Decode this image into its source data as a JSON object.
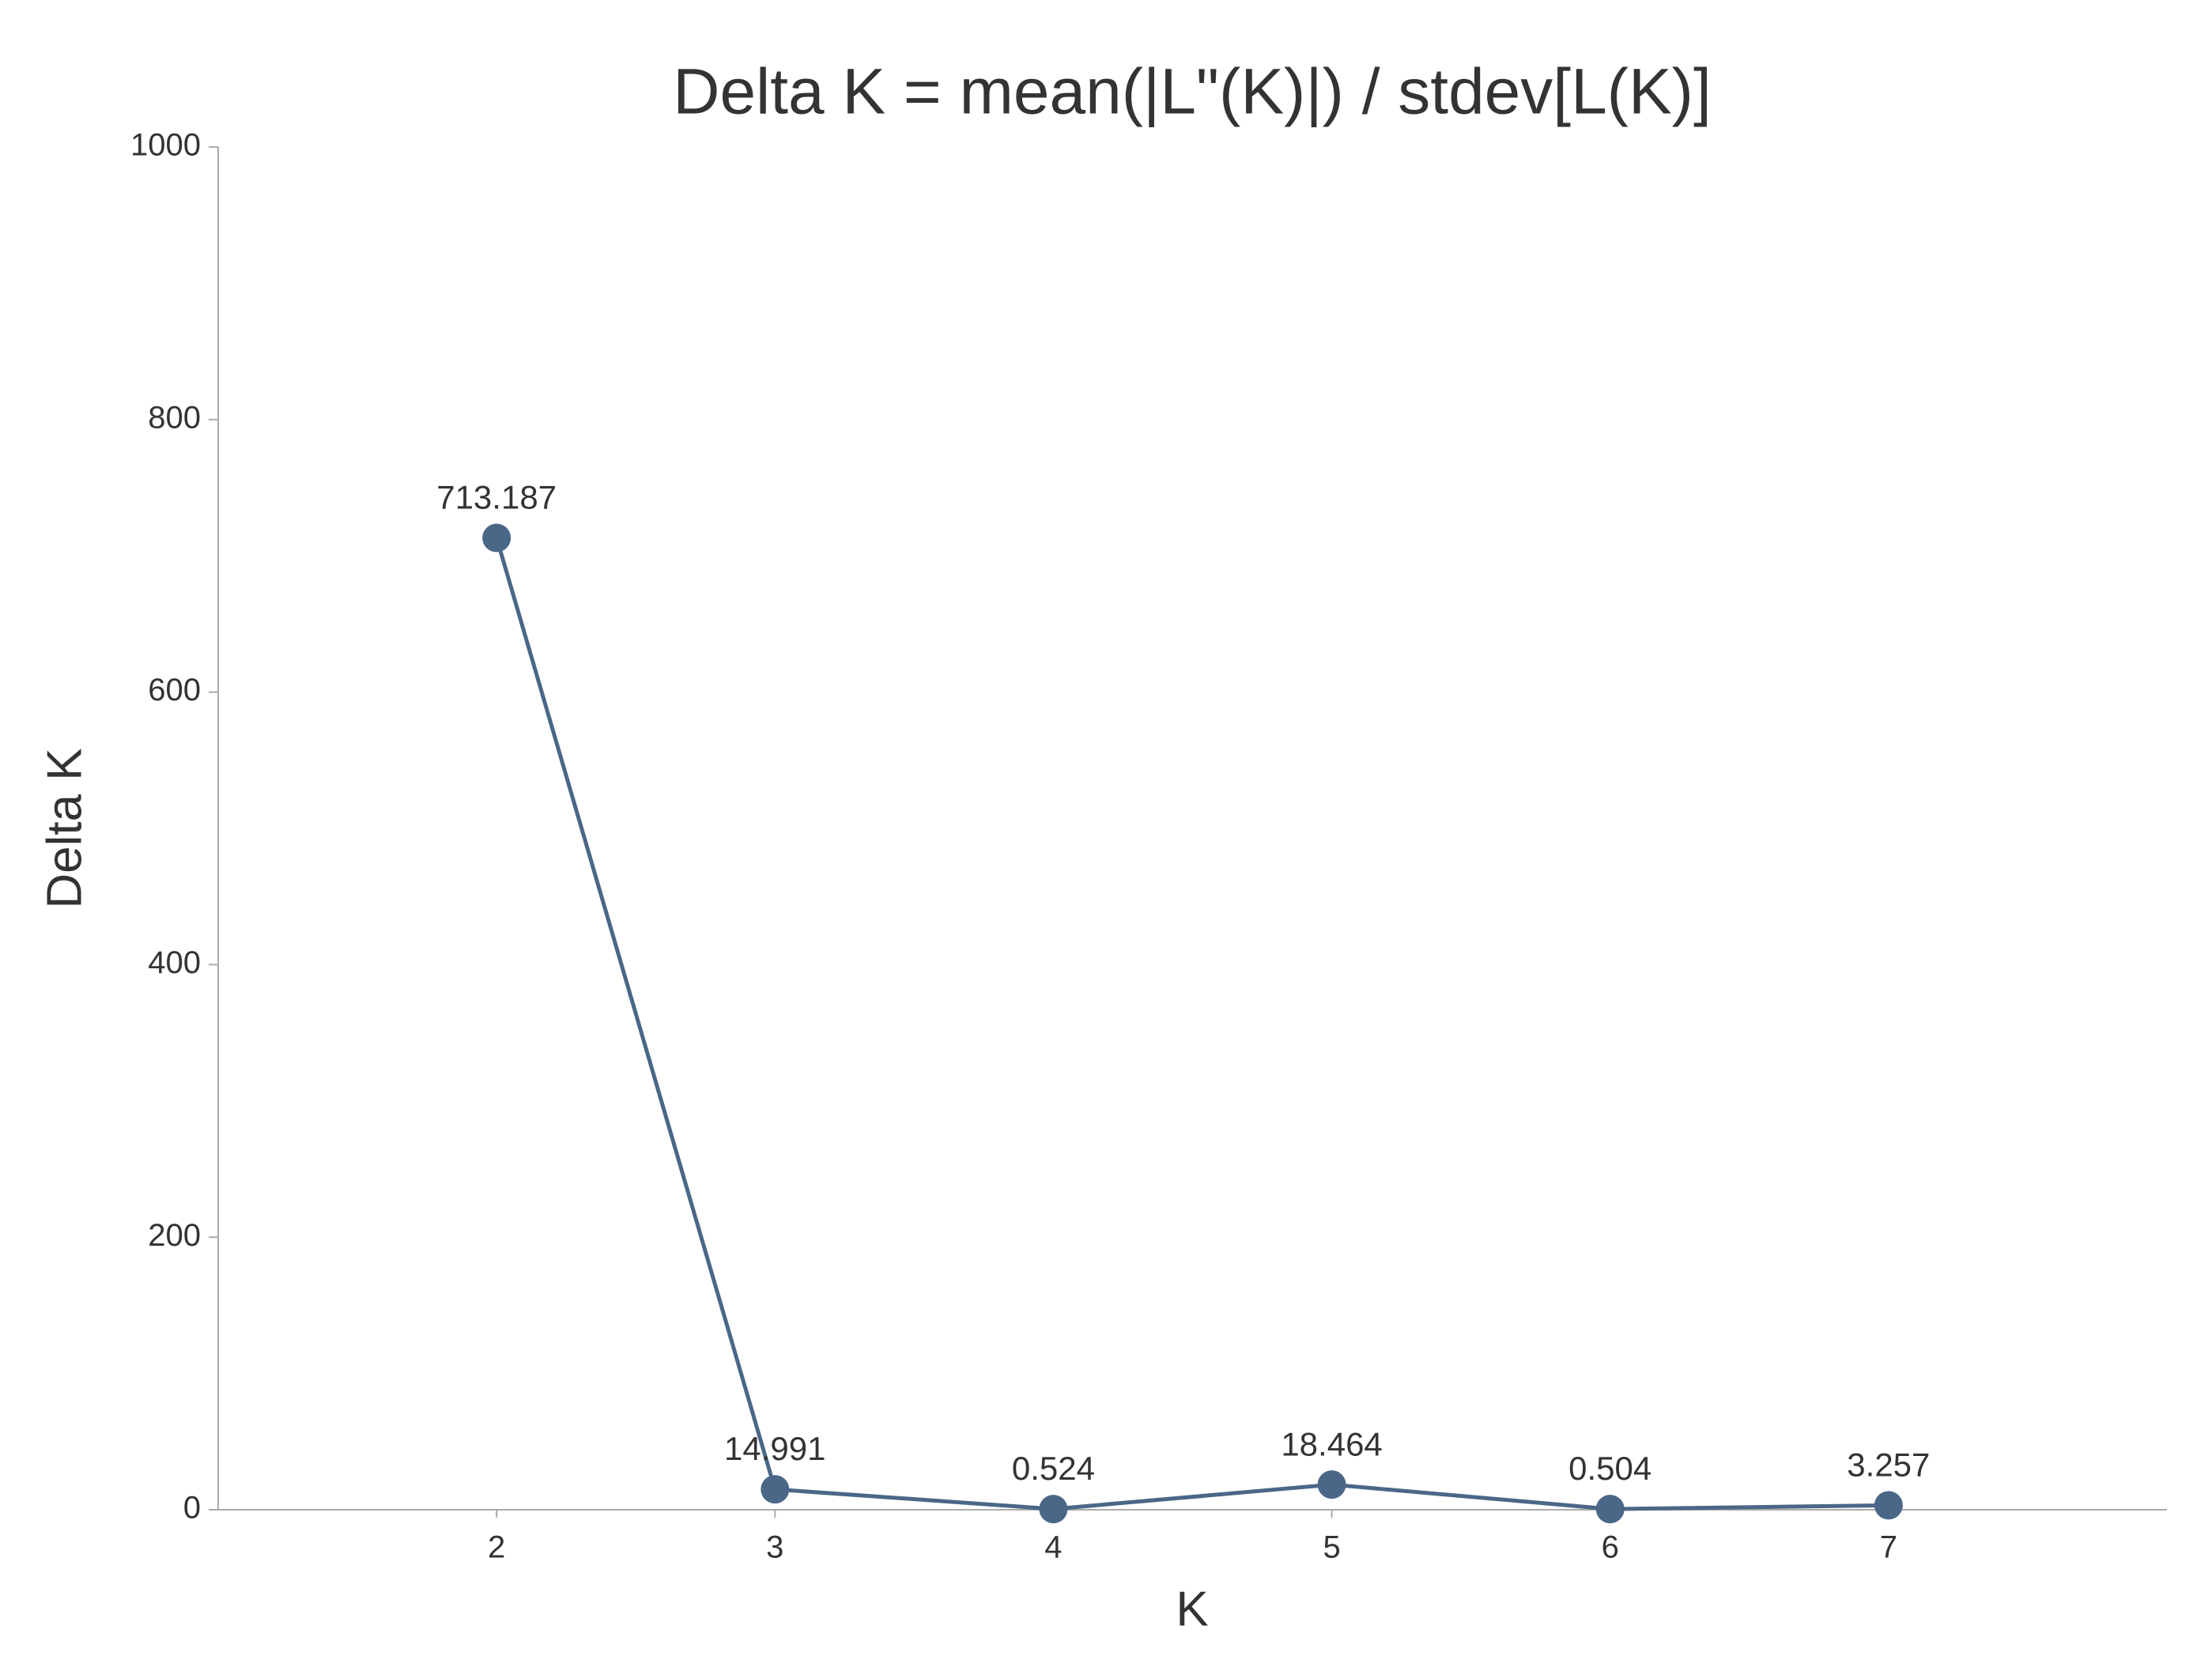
{
  "chart_data": {
    "type": "line",
    "title": "Delta K = mean(|L\"(K)|) / stdev[L(K)]",
    "x_label": "K",
    "y_label": "Delta K",
    "x": [
      2,
      3,
      4,
      5,
      6,
      7
    ],
    "series": [
      {
        "color": "#4a6788",
        "values": [
          713.187,
          14.991,
          0.524,
          18.464,
          0.504,
          3.257
        ]
      }
    ],
    "xlim": [
      1,
      8
    ],
    "xticks": [
      2,
      3,
      4,
      5,
      6,
      7
    ],
    "ylim": [
      0,
      1000
    ],
    "yticks": [
      0,
      200,
      400,
      600,
      800,
      1000
    ],
    "grid": false
  }
}
